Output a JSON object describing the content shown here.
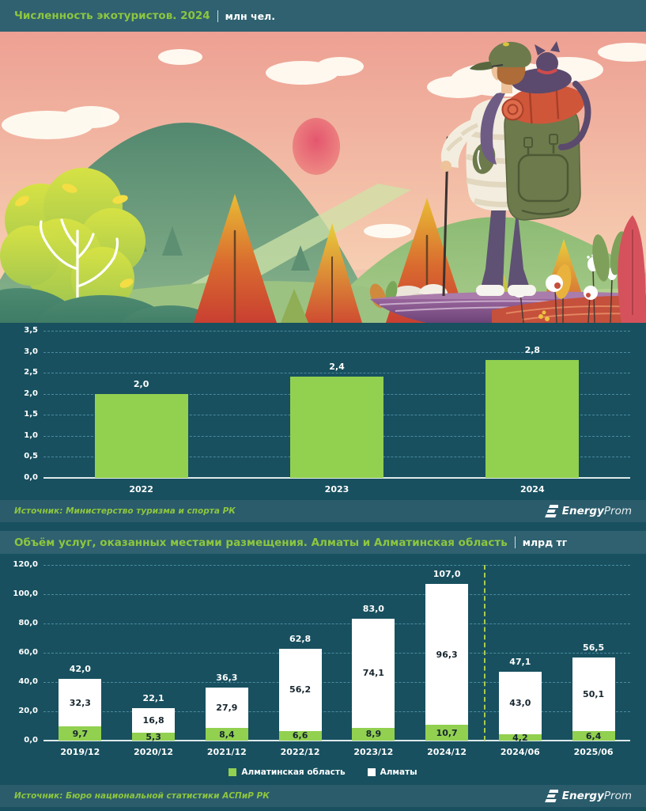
{
  "header1": {
    "unit_label": "млн чел."
  },
  "header2": {
    "unit_label": "млрд тг"
  },
  "sources": [
    {
      "text": "Источник: Министерство туризма и спорта РК"
    },
    {
      "text": "Источник: Бюро национальной статистики АСПиР РК"
    }
  ],
  "brand": {
    "bold": "Energy",
    "light": "Prom"
  },
  "illustration": {
    "alt": "Hiker with a backpack and a cat looking at sunset over autumn mountains"
  },
  "colors": {
    "background": "#18505f",
    "header_bar": "#2f6170",
    "source_bar": "#2b5c6b",
    "accent_green": "#8dc63f",
    "bar_green": "#92d050",
    "bar_white": "#ffffff",
    "grid": "#4a8ba1",
    "separator": "#a9cc4f",
    "dark_label": "#17262e"
  },
  "chart_data": [
    {
      "type": "bar",
      "title": "Численность экотуристов. 2024",
      "unit": "млн чел.",
      "categories": [
        "2022",
        "2023",
        "2024"
      ],
      "values": [
        2.0,
        2.4,
        2.8
      ],
      "value_labels": [
        "2,0",
        "2,4",
        "2,8"
      ],
      "ylim": [
        0,
        3.5
      ],
      "ytick_step": 0.5,
      "ytick_labels": [
        "0,0",
        "0,5",
        "1,0",
        "1,5",
        "2,0",
        "2,5",
        "3,0",
        "3,5"
      ],
      "bar_color": "#92d050",
      "grid": true,
      "legend": null
    },
    {
      "type": "stacked-bar",
      "title": "Объём услуг, оказанных местами размещения. Алматы и Алматинская область",
      "unit": "млрд тг",
      "categories": [
        "2019/12",
        "2020/12",
        "2021/12",
        "2022/12",
        "2023/12",
        "2024/12",
        "2024/06",
        "2025/06"
      ],
      "series": [
        {
          "name": "Алматинская область",
          "color": "#92d050",
          "values": [
            9.7,
            5.3,
            8.4,
            6.6,
            8.9,
            10.7,
            4.2,
            6.4
          ],
          "labels": [
            "9,7",
            "5,3",
            "8,4",
            "6,6",
            "8,9",
            "10,7",
            "4,2",
            "6,4"
          ]
        },
        {
          "name": "Алматы",
          "color": "#ffffff",
          "values": [
            32.3,
            16.8,
            27.9,
            56.2,
            74.1,
            96.3,
            43.0,
            50.1
          ],
          "labels": [
            "32,3",
            "16,8",
            "27,9",
            "56,2",
            "74,1",
            "96,3",
            "43,0",
            "50,1"
          ]
        }
      ],
      "totals": [
        42.0,
        22.1,
        36.3,
        62.8,
        83.0,
        107.0,
        47.1,
        56.5
      ],
      "total_labels": [
        "42,0",
        "22,1",
        "36,3",
        "62,8",
        "83,0",
        "107,0",
        "47,1",
        "56,5"
      ],
      "ylim": [
        0,
        120
      ],
      "ytick_step": 20,
      "ytick_labels": [
        "0,0",
        "20,0",
        "40,0",
        "60,0",
        "80,0",
        "100,0",
        "120,0"
      ],
      "separator_after_index": 5,
      "grid": true,
      "legend_position": "bottom"
    }
  ]
}
